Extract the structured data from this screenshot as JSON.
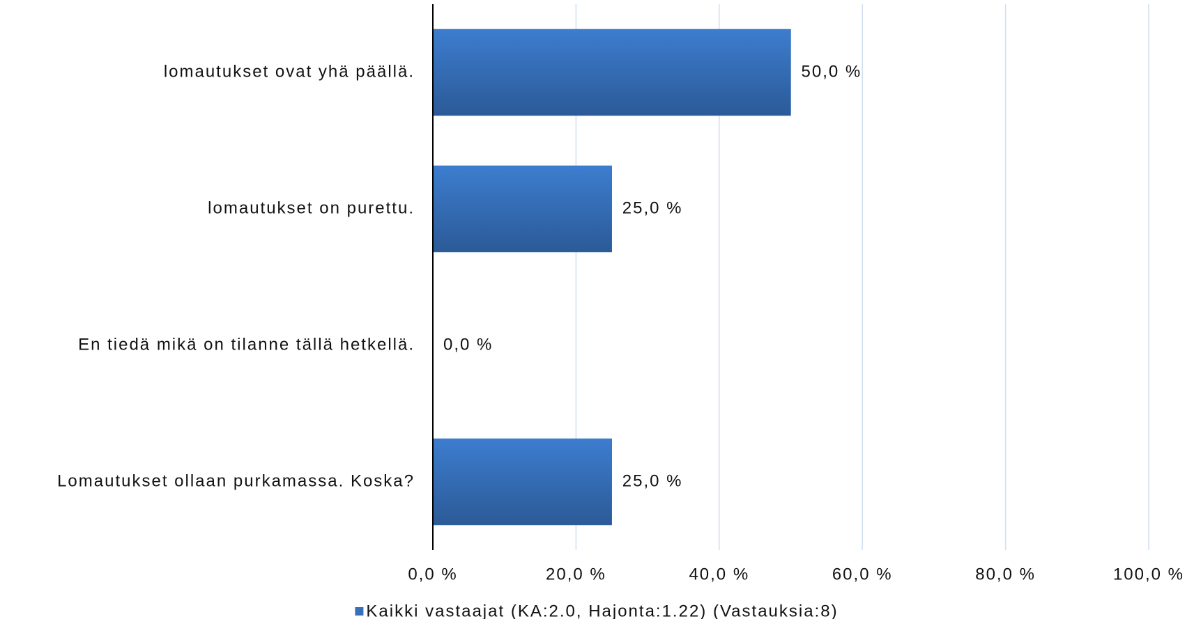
{
  "chart_data": {
    "type": "hbar",
    "categories": [
      "lomautukset ovat yhä päällä.",
      "lomautukset on purettu.",
      "En tiedä mikä on tilanne tällä hetkellä.",
      "Lomautukset ollaan purkamassa. Koska?"
    ],
    "series": [
      {
        "name": "Kaikki vastaajat (KA:2.0, Hajonta:1.22) (Vastauksia:8)",
        "color": "#3570b8",
        "values": [
          50,
          25,
          0,
          25
        ],
        "value_labels": [
          "50,0 %",
          "25,0 %",
          "0,0 %",
          "25,0 %"
        ]
      }
    ],
    "xlim": [
      0,
      100
    ],
    "xticks": [
      {
        "value": 0,
        "label": "0,0 %"
      },
      {
        "value": 20,
        "label": "20,0 %"
      },
      {
        "value": 40,
        "label": "40,0 %"
      },
      {
        "value": 60,
        "label": "60,0 %"
      },
      {
        "value": 80,
        "label": "80,0 %"
      },
      {
        "value": 100,
        "label": "100,0 %"
      }
    ],
    "grid": true,
    "legend": "bottom"
  }
}
